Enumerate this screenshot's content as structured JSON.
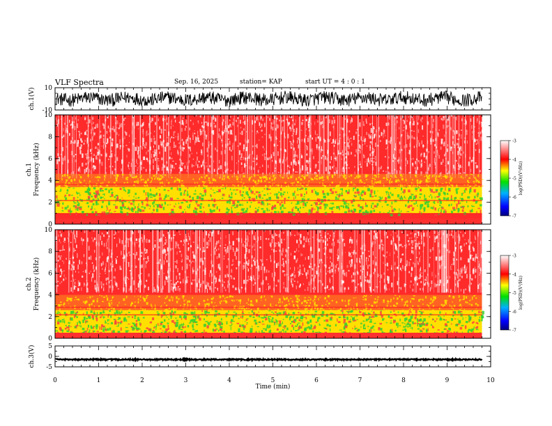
{
  "header": {
    "title": "VLF Spectra",
    "date": "Sep. 16, 2025",
    "station": "station= KAP",
    "start_ut": "start  UT =   4 : 0  : 1"
  },
  "colors": {
    "spectrogram_high": "#ff2a2a",
    "spectrogram_mid": "#ffe000",
    "spectrogram_low": "#30d030",
    "colorbar": [
      "#000080",
      "#0000ff",
      "#00b0ff",
      "#00e000",
      "#ffff00",
      "#ff0000",
      "#ffffff"
    ],
    "waveform": "#000000"
  },
  "chart_data": [
    {
      "type": "line",
      "name": "ch1-waveform",
      "ylabel": "ch.1(V)",
      "ylim": [
        -10,
        10
      ],
      "ytick_labels": [
        "-10",
        "10"
      ],
      "description_values": "noise waveform, amplitude approx ±6 V",
      "amplitude": 6
    },
    {
      "type": "heatmap",
      "name": "ch1-spectrogram",
      "ylabel": "ch.1\nFrequency  (kHz)",
      "ylabel_line1": "ch.1",
      "ylabel_line2": "Frequency  (kHz)",
      "ylim": [
        0,
        10
      ],
      "ytick_labels": [
        "0",
        "2",
        "4",
        "6",
        "8",
        "10"
      ],
      "band_low_khz": [
        1.0,
        3.4
      ],
      "band_mid_khz": [
        3.4,
        4.6
      ],
      "colorbar": {
        "label": "log(PSD)(V²/Hz)",
        "ticks": [
          "-3",
          "-4",
          "-5",
          "-6",
          "-7"
        ],
        "range": [
          -7,
          -3
        ]
      }
    },
    {
      "type": "heatmap",
      "name": "ch2-spectrogram",
      "ylabel_line1": "ch.2",
      "ylabel_line2": "Frequency  (kHz)",
      "ylim": [
        0,
        10
      ],
      "ytick_labels": [
        "0",
        "2",
        "4",
        "6",
        "8",
        "10"
      ],
      "band_low_khz": [
        0.5,
        2.6
      ],
      "band_mid_khz": [
        2.6,
        4.0
      ],
      "colorbar": {
        "label": "log(PSD)(V²/Hz)",
        "ticks": [
          "-3",
          "-4",
          "-5",
          "-6",
          "-7"
        ],
        "range": [
          -7,
          -3
        ]
      }
    },
    {
      "type": "line",
      "name": "ch3-waveform",
      "ylabel": "ch.3(V)",
      "ylim": [
        -5,
        5
      ],
      "ytick_labels": [
        "-5",
        "0",
        "5"
      ],
      "level": -1.5,
      "amplitude": 0.3
    }
  ],
  "xaxis": {
    "label": "Time  (min)",
    "xlim": [
      0,
      10
    ],
    "tick_labels": [
      "0",
      "1",
      "2",
      "3",
      "4",
      "5",
      "6",
      "7",
      "8",
      "9",
      "10"
    ],
    "data_end_min": 9.8
  }
}
